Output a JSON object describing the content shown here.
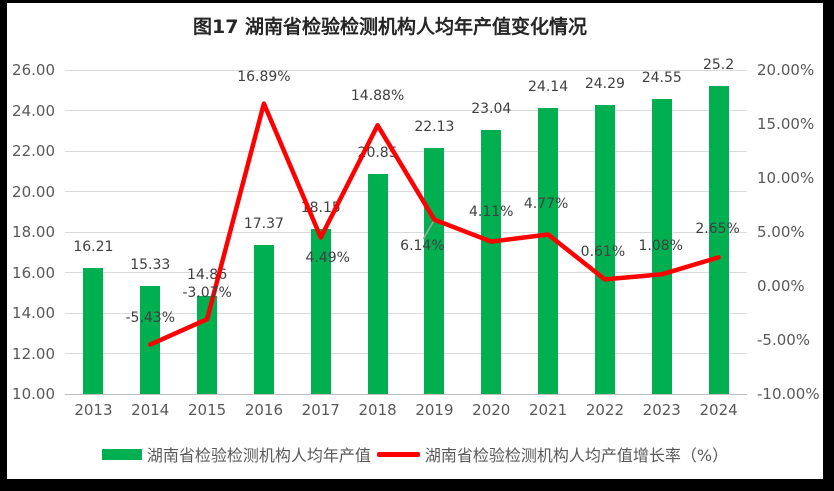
{
  "page": {
    "background": "#000000",
    "canvas_background": "#FFFFFF",
    "gridline_color": "#D9D9D9",
    "axis_line_color": "#BFBFBF",
    "leader_line_color": "#A6A6A6"
  },
  "chart_data": {
    "type": "combo",
    "title": "图17 湖南省检验检测机构人均年产值变化情况",
    "categories": [
      "2013",
      "2014",
      "2015",
      "2016",
      "2017",
      "2018",
      "2019",
      "2020",
      "2021",
      "2022",
      "2023",
      "2024"
    ],
    "series": [
      {
        "name": "湖南省检验检测机构人均年产值",
        "type": "bar",
        "axis": "left",
        "color": "#00B050",
        "values": [
          16.21,
          15.33,
          14.86,
          17.37,
          18.15,
          20.85,
          22.13,
          23.04,
          24.14,
          24.29,
          24.55,
          25.2
        ],
        "labels": [
          "16.21",
          "15.33",
          "14.86",
          "17.37",
          "18.15",
          "20.85",
          "22.13",
          "23.04",
          "24.14",
          "24.29",
          "24.55",
          "25.2"
        ]
      },
      {
        "name": "湖南省检验检测机构人均产值增长率（%）",
        "type": "line",
        "axis": "right",
        "color": "#FF0000",
        "values": [
          null,
          -5.43,
          -3.07,
          16.89,
          4.49,
          14.88,
          6.14,
          4.11,
          4.77,
          0.61,
          1.08,
          2.65
        ],
        "labels": [
          "",
          "-5.43%",
          "-3.07%",
          "16.89%",
          "4.49%",
          "14.88%",
          "6.14%",
          "4.11%",
          "4.77%",
          "0.61%",
          "1.08%",
          "2.65%"
        ]
      }
    ],
    "left_axis": {
      "min": 10,
      "max": 26,
      "step": 2,
      "ticks": [
        "26.00",
        "24.00",
        "22.00",
        "20.00",
        "18.00",
        "16.00",
        "14.00",
        "12.00",
        "10.00"
      ]
    },
    "right_axis": {
      "min": -10,
      "max": 20,
      "step": 5,
      "ticks": [
        "20.00%",
        "15.00%",
        "10.00%",
        "5.00%",
        "0.00%",
        "-5.00%",
        "-10.00%"
      ]
    },
    "grid": true,
    "legend": {
      "position": "bottom",
      "items": [
        {
          "label": "湖南省检验检测机构人均年产值",
          "marker": "bar",
          "color": "#00B050"
        },
        {
          "label": "湖南省检验检测机构人均产值增长率（%）",
          "marker": "line",
          "color": "#FF0000"
        }
      ]
    }
  }
}
